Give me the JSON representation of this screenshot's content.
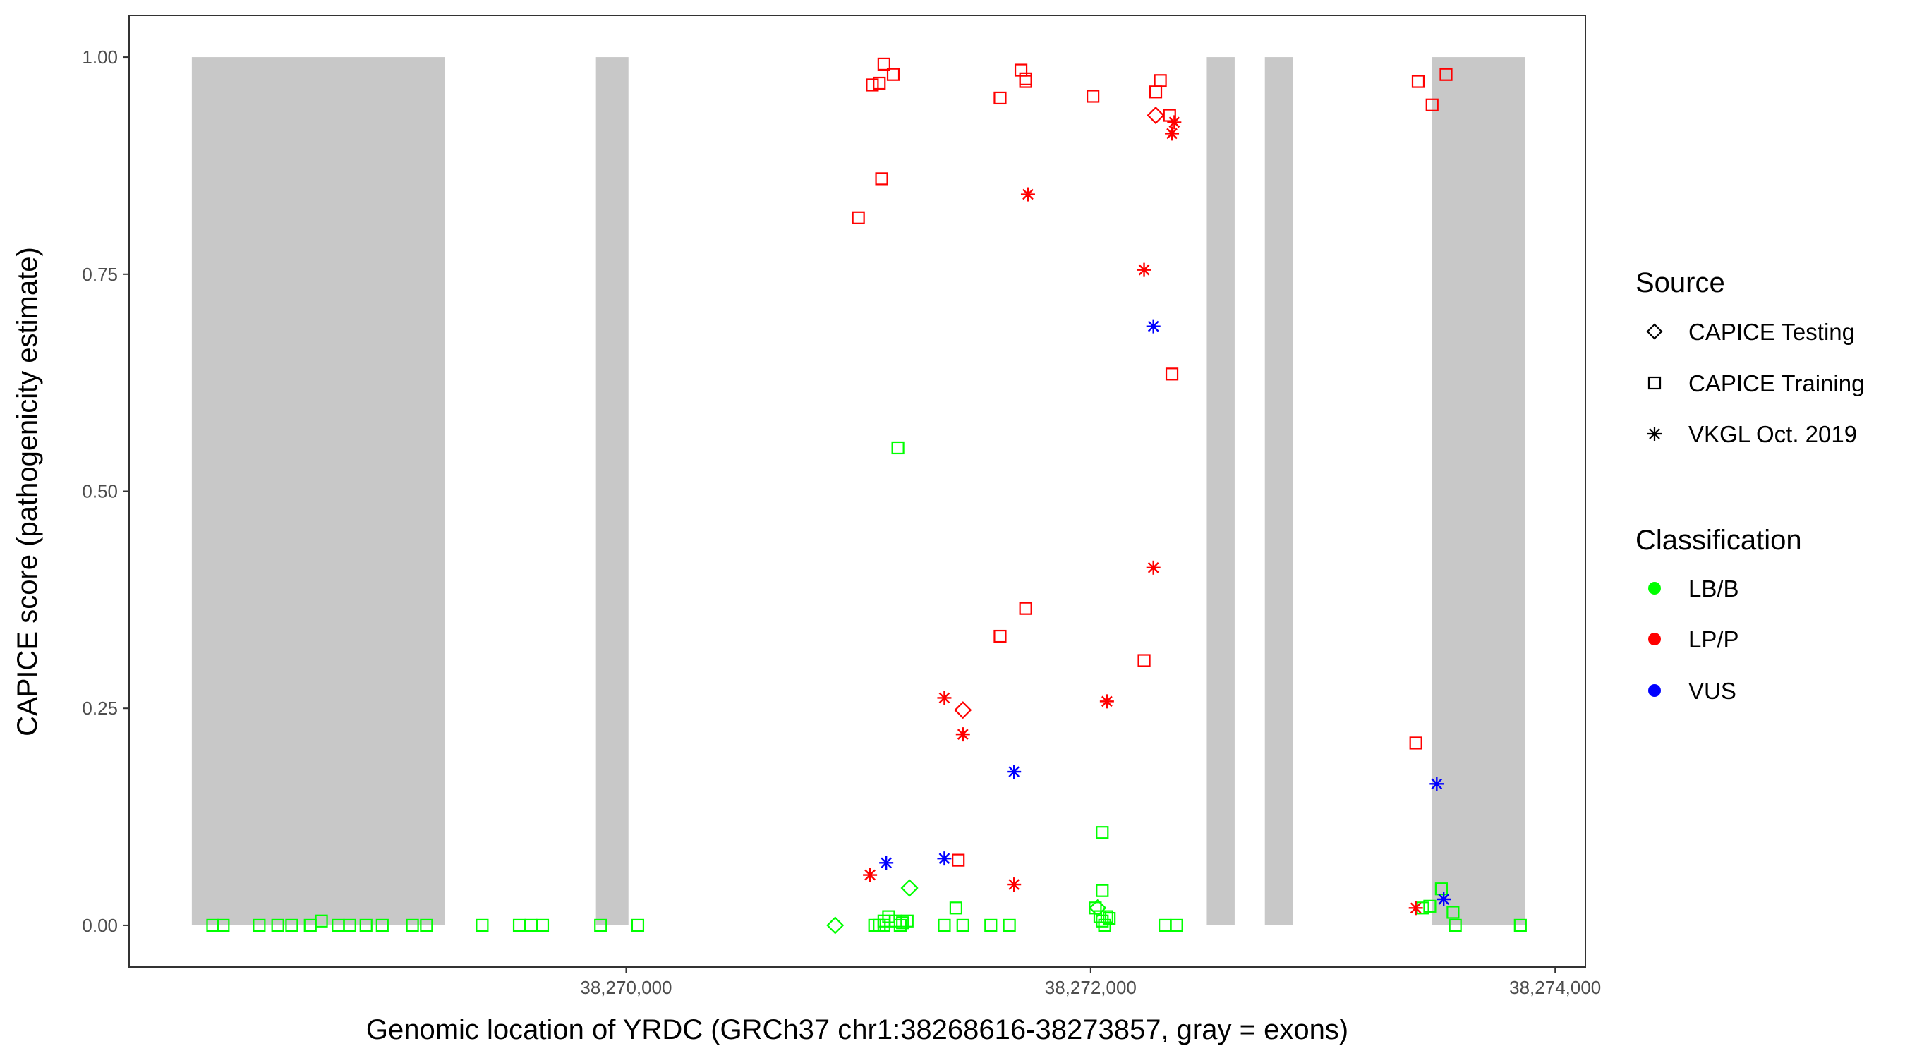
{
  "chart_data": {
    "type": "scatter",
    "xlabel": "Genomic location of YRDC (GRCh37 chr1:38268616-38273857, gray = exons)",
    "ylabel": "CAPICE score (pathogenicity estimate)",
    "xlim": [
      38267860,
      38274130
    ],
    "ylim": [
      -0.048,
      1.048
    ],
    "x_ticks": [
      38270000,
      38272000,
      38274000
    ],
    "x_tick_labels": [
      "38,270,000",
      "38,272,000",
      "38,274,000"
    ],
    "y_ticks": [
      0,
      0.25,
      0.5,
      0.75,
      1
    ],
    "y_tick_labels": [
      "0.00",
      "0.25",
      "0.50",
      "0.75",
      "1.00"
    ],
    "grid": false,
    "exons": [
      {
        "start": 38268130,
        "end": 38269220
      },
      {
        "start": 38269870,
        "end": 38270010
      },
      {
        "start": 38272500,
        "end": 38272620
      },
      {
        "start": 38272750,
        "end": 38272870
      },
      {
        "start": 38273470,
        "end": 38273870
      }
    ],
    "legend": {
      "placement": "right",
      "source": {
        "title": "Source",
        "items": [
          {
            "label": "CAPICE Testing",
            "shape": "diamond"
          },
          {
            "label": "CAPICE Training",
            "shape": "square"
          },
          {
            "label": "VKGL Oct. 2019",
            "shape": "asterisk"
          }
        ]
      },
      "classification": {
        "title": "Classification",
        "items": [
          {
            "label": "LB/B",
            "color": "#00ff00"
          },
          {
            "label": "LP/P",
            "color": "#ff0000"
          },
          {
            "label": "VUS",
            "color": "#0000ff"
          }
        ]
      }
    },
    "colors": {
      "LB/B": "#00ff00",
      "LP/P": "#ff0000",
      "VUS": "#0000ff"
    },
    "series": [
      {
        "name": "CAPICE Training – LB/B",
        "shape": "square",
        "class": "LB/B",
        "points": [
          [
            38268220,
            0
          ],
          [
            38268265,
            0
          ],
          [
            38268420,
            0
          ],
          [
            38268500,
            0
          ],
          [
            38268560,
            0
          ],
          [
            38268640,
            0
          ],
          [
            38268688,
            0.005
          ],
          [
            38268760,
            0
          ],
          [
            38268810,
            0
          ],
          [
            38268880,
            0
          ],
          [
            38268950,
            0
          ],
          [
            38269080,
            0
          ],
          [
            38269140,
            0
          ],
          [
            38269380,
            0
          ],
          [
            38269540,
            0
          ],
          [
            38269590,
            0
          ],
          [
            38269640,
            0
          ],
          [
            38269890,
            0
          ],
          [
            38270050,
            0
          ],
          [
            38271070,
            0
          ],
          [
            38271090,
            0
          ],
          [
            38271110,
            0.005
          ],
          [
            38271110,
            0
          ],
          [
            38271130,
            0.01
          ],
          [
            38271160,
            0.005
          ],
          [
            38271170,
            0.55
          ],
          [
            38271180,
            0
          ],
          [
            38271190,
            0.003
          ],
          [
            38271210,
            0.005
          ],
          [
            38271370,
            0
          ],
          [
            38271420,
            0.02
          ],
          [
            38271450,
            0
          ],
          [
            38271570,
            0
          ],
          [
            38271650,
            0
          ],
          [
            38272020,
            0.02
          ],
          [
            38272040,
            0.01
          ],
          [
            38272050,
            0.005
          ],
          [
            38272050,
            0.04
          ],
          [
            38272050,
            0.107
          ],
          [
            38272060,
            0
          ],
          [
            38272070,
            0.01
          ],
          [
            38272080,
            0.008
          ],
          [
            38272320,
            0
          ],
          [
            38272370,
            0
          ],
          [
            38273430,
            0.02
          ],
          [
            38273460,
            0.022
          ],
          [
            38273510,
            0.042
          ],
          [
            38273560,
            0.015
          ],
          [
            38273570,
            0
          ],
          [
            38273850,
            0
          ]
        ]
      },
      {
        "name": "CAPICE Training – LP/P",
        "shape": "square",
        "class": "LP/P",
        "points": [
          [
            38271000,
            0.815
          ],
          [
            38271060,
            0.968
          ],
          [
            38271090,
            0.97
          ],
          [
            38271100,
            0.86
          ],
          [
            38271110,
            0.992
          ],
          [
            38271150,
            0.98
          ],
          [
            38271430,
            0.075
          ],
          [
            38271610,
            0.953
          ],
          [
            38271610,
            0.333
          ],
          [
            38271700,
            0.985
          ],
          [
            38271720,
            0.975
          ],
          [
            38271720,
            0.972
          ],
          [
            38271720,
            0.365
          ],
          [
            38272010,
            0.955
          ],
          [
            38272230,
            0.305
          ],
          [
            38272280,
            0.96
          ],
          [
            38272300,
            0.973
          ],
          [
            38272340,
            0.933
          ],
          [
            38272350,
            0.635
          ],
          [
            38273400,
            0.21
          ],
          [
            38273410,
            0.972
          ],
          [
            38273470,
            0.945
          ],
          [
            38273530,
            0.98
          ]
        ]
      },
      {
        "name": "CAPICE Testing – LB/B",
        "shape": "diamond",
        "class": "LB/B",
        "points": [
          [
            38270900,
            0
          ],
          [
            38271220,
            0.043
          ],
          [
            38272030,
            0.02
          ]
        ]
      },
      {
        "name": "CAPICE Testing – LP/P",
        "shape": "diamond",
        "class": "LP/P",
        "points": [
          [
            38271450,
            0.248
          ],
          [
            38272280,
            0.933
          ]
        ]
      },
      {
        "name": "VKGL Oct. 2019 – LP/P",
        "shape": "asterisk",
        "class": "LP/P",
        "points": [
          [
            38271050,
            0.058
          ],
          [
            38271370,
            0.262
          ],
          [
            38271450,
            0.22
          ],
          [
            38271670,
            0.047
          ],
          [
            38271730,
            0.842
          ],
          [
            38272070,
            0.258
          ],
          [
            38272230,
            0.755
          ],
          [
            38272270,
            0.412
          ],
          [
            38272350,
            0.912
          ],
          [
            38272360,
            0.925
          ],
          [
            38273400,
            0.02
          ]
        ]
      },
      {
        "name": "VKGL Oct. 2019 – VUS",
        "shape": "asterisk",
        "class": "VUS",
        "points": [
          [
            38271120,
            0.072
          ],
          [
            38271370,
            0.077
          ],
          [
            38271670,
            0.177
          ],
          [
            38272270,
            0.69
          ],
          [
            38273490,
            0.163
          ],
          [
            38273520,
            0.03
          ]
        ]
      }
    ]
  }
}
